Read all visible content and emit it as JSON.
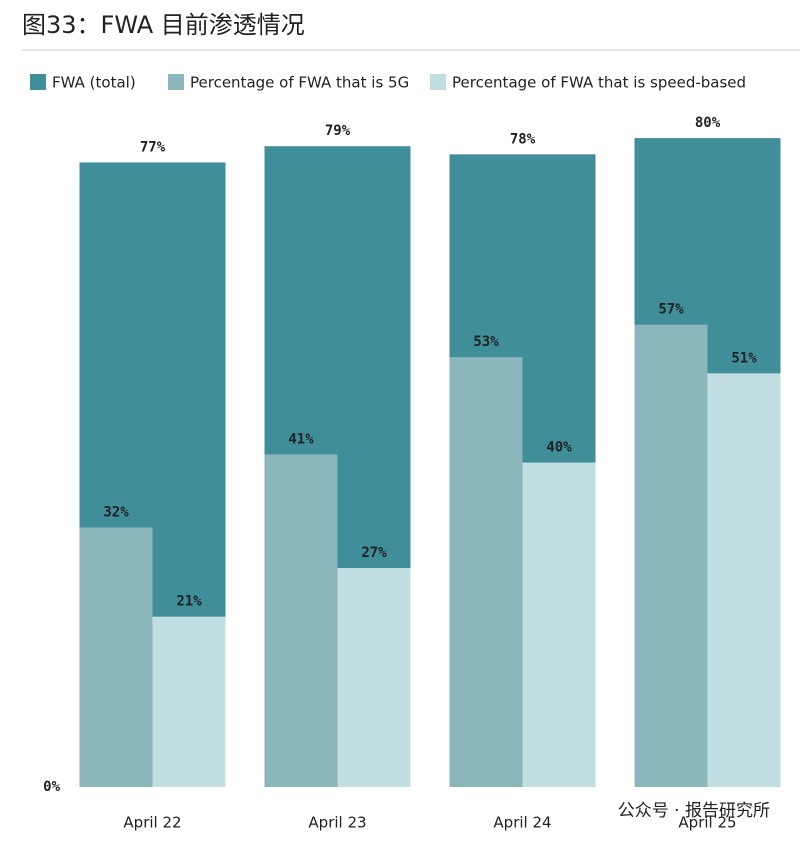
{
  "chart_data": {
    "type": "bar",
    "title": "图33：FWA 目前渗透情况",
    "categories": [
      "April 22",
      "April 23",
      "April 24",
      "April 25"
    ],
    "series": [
      {
        "name": "FWA (total)",
        "color": "#3f8e99",
        "values": [
          77,
          79,
          78,
          80
        ],
        "value_labels": [
          "77%",
          "79%",
          "78%",
          "80%"
        ]
      },
      {
        "name": "Percentage of FWA that is 5G",
        "color": "#8ab6bc",
        "values": [
          32,
          41,
          53,
          57
        ],
        "value_labels": [
          "32%",
          "41%",
          "53%",
          "57%"
        ]
      },
      {
        "name": "Percentage of FWA that is speed-based",
        "color": "#c1dfe3",
        "values": [
          21,
          27,
          40,
          51
        ],
        "value_labels": [
          "21%",
          "27%",
          "40%",
          "51%"
        ]
      }
    ],
    "ylim": [
      0,
      90
    ],
    "yticks": [
      {
        "value": 0,
        "label": "0%"
      }
    ],
    "grid": false,
    "legend": "top-left",
    "watermark": "公众号 · 报告研究所"
  }
}
